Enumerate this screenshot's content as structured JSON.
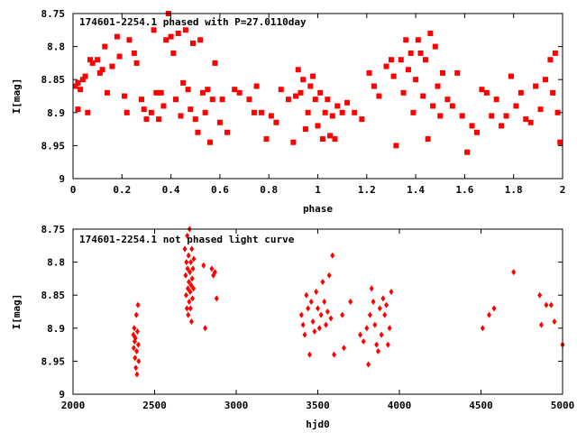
{
  "colors": {
    "marker": "#ff0000",
    "axis": "#000000",
    "background": "#ffffff"
  },
  "chart_data": [
    {
      "type": "scatter",
      "title": "174601-2254.1 phased with P=27.0110day",
      "xlabel": "phase",
      "ylabel": "I[mag]",
      "xlim": [
        0,
        2
      ],
      "ylim": [
        8.75,
        9
      ],
      "y_inverted": true,
      "xticks": [
        "0",
        "0.2",
        "0.4",
        "0.6",
        "0.8",
        "1",
        "1.2",
        "1.4",
        "1.6",
        "1.8",
        "2"
      ],
      "xtick_values": [
        0,
        0.2,
        0.4,
        0.6,
        0.8,
        1.0,
        1.2,
        1.4,
        1.6,
        1.8,
        2.0
      ],
      "yticks": [
        "8.75",
        "8.8",
        "8.85",
        "8.9",
        "8.95",
        "9"
      ],
      "ytick_values": [
        8.75,
        8.8,
        8.85,
        8.9,
        8.95,
        9.0
      ],
      "marker": "filled-square",
      "points": [
        [
          0.01,
          8.86
        ],
        [
          0.02,
          8.855
        ],
        [
          0.03,
          8.865
        ],
        [
          0.04,
          8.85
        ],
        [
          0.02,
          8.895
        ],
        [
          0.05,
          8.845
        ],
        [
          0.06,
          8.9
        ],
        [
          0.07,
          8.82
        ],
        [
          0.08,
          8.825
        ],
        [
          0.1,
          8.82
        ],
        [
          0.11,
          8.84
        ],
        [
          0.12,
          8.835
        ],
        [
          0.13,
          8.8
        ],
        [
          0.14,
          8.87
        ],
        [
          0.16,
          8.83
        ],
        [
          0.18,
          8.785
        ],
        [
          0.19,
          8.815
        ],
        [
          0.21,
          8.875
        ],
        [
          0.22,
          8.9
        ],
        [
          0.23,
          8.79
        ],
        [
          0.25,
          8.81
        ],
        [
          0.26,
          8.825
        ],
        [
          0.28,
          8.88
        ],
        [
          0.29,
          8.895
        ],
        [
          0.3,
          8.91
        ],
        [
          0.32,
          8.9
        ],
        [
          0.33,
          8.775
        ],
        [
          0.34,
          8.87
        ],
        [
          0.35,
          8.91
        ],
        [
          0.36,
          8.87
        ],
        [
          0.37,
          8.89
        ],
        [
          0.38,
          8.79
        ],
        [
          0.39,
          8.75
        ],
        [
          0.4,
          8.785
        ],
        [
          0.41,
          8.81
        ],
        [
          0.42,
          8.88
        ],
        [
          0.43,
          8.78
        ],
        [
          0.44,
          8.905
        ],
        [
          0.45,
          8.855
        ],
        [
          0.46,
          8.775
        ],
        [
          0.47,
          8.865
        ],
        [
          0.48,
          8.895
        ],
        [
          0.49,
          8.795
        ],
        [
          0.5,
          8.91
        ],
        [
          0.51,
          8.93
        ],
        [
          0.52,
          8.79
        ],
        [
          0.53,
          8.87
        ],
        [
          0.54,
          8.9
        ],
        [
          0.55,
          8.865
        ],
        [
          0.56,
          8.945
        ],
        [
          0.57,
          8.88
        ],
        [
          0.58,
          8.825
        ],
        [
          0.6,
          8.915
        ],
        [
          0.61,
          8.88
        ],
        [
          0.63,
          8.93
        ],
        [
          0.66,
          8.865
        ],
        [
          0.68,
          8.87
        ],
        [
          0.72,
          8.88
        ],
        [
          0.74,
          8.9
        ],
        [
          0.75,
          8.86
        ],
        [
          0.77,
          8.9
        ],
        [
          0.79,
          8.94
        ],
        [
          0.81,
          8.905
        ],
        [
          0.83,
          8.915
        ],
        [
          0.85,
          8.865
        ],
        [
          0.88,
          8.88
        ],
        [
          0.9,
          8.945
        ],
        [
          0.91,
          8.875
        ],
        [
          0.92,
          8.835
        ],
        [
          0.93,
          8.87
        ],
        [
          0.94,
          8.85
        ],
        [
          0.95,
          8.925
        ],
        [
          0.96,
          8.9
        ],
        [
          0.97,
          8.86
        ],
        [
          0.98,
          8.845
        ],
        [
          0.99,
          8.88
        ],
        [
          1.0,
          8.92
        ],
        [
          1.01,
          8.87
        ],
        [
          1.02,
          8.94
        ],
        [
          1.03,
          8.9
        ],
        [
          1.04,
          8.88
        ],
        [
          1.05,
          8.935
        ],
        [
          1.06,
          8.905
        ],
        [
          1.07,
          8.94
        ],
        [
          1.08,
          8.89
        ],
        [
          1.1,
          8.9
        ],
        [
          1.12,
          8.885
        ],
        [
          1.15,
          8.9
        ],
        [
          1.18,
          8.91
        ],
        [
          1.21,
          8.84
        ],
        [
          1.23,
          8.86
        ],
        [
          1.25,
          8.875
        ],
        [
          1.28,
          8.83
        ],
        [
          1.3,
          8.82
        ],
        [
          1.31,
          8.845
        ],
        [
          1.32,
          8.95
        ],
        [
          1.34,
          8.82
        ],
        [
          1.35,
          8.87
        ],
        [
          1.36,
          8.79
        ],
        [
          1.37,
          8.835
        ],
        [
          1.38,
          8.81
        ],
        [
          1.39,
          8.9
        ],
        [
          1.4,
          8.85
        ],
        [
          1.41,
          8.79
        ],
        [
          1.42,
          8.81
        ],
        [
          1.43,
          8.875
        ],
        [
          1.44,
          8.82
        ],
        [
          1.45,
          8.94
        ],
        [
          1.46,
          8.78
        ],
        [
          1.47,
          8.89
        ],
        [
          1.48,
          8.8
        ],
        [
          1.49,
          8.86
        ],
        [
          1.5,
          8.905
        ],
        [
          1.51,
          8.84
        ],
        [
          1.53,
          8.88
        ],
        [
          1.55,
          8.89
        ],
        [
          1.57,
          8.84
        ],
        [
          1.59,
          8.905
        ],
        [
          1.61,
          8.96
        ],
        [
          1.63,
          8.92
        ],
        [
          1.65,
          8.93
        ],
        [
          1.67,
          8.865
        ],
        [
          1.69,
          8.87
        ],
        [
          1.71,
          8.905
        ],
        [
          1.73,
          8.88
        ],
        [
          1.75,
          8.92
        ],
        [
          1.77,
          8.905
        ],
        [
          1.79,
          8.845
        ],
        [
          1.81,
          8.89
        ],
        [
          1.83,
          8.87
        ],
        [
          1.85,
          8.91
        ],
        [
          1.87,
          8.915
        ],
        [
          1.89,
          8.86
        ],
        [
          1.91,
          8.895
        ],
        [
          1.93,
          8.85
        ],
        [
          1.95,
          8.82
        ],
        [
          1.96,
          8.87
        ],
        [
          1.97,
          8.81
        ],
        [
          1.98,
          8.9
        ],
        [
          1.99,
          8.945
        ]
      ]
    },
    {
      "type": "scatter",
      "title": "174601-2254.1 not phased light curve",
      "xlabel": "hjd0",
      "ylabel": "I[mag]",
      "xlim": [
        2000,
        5000
      ],
      "ylim": [
        8.75,
        9
      ],
      "y_inverted": true,
      "xticks": [
        "2000",
        "2500",
        "3000",
        "3500",
        "4000",
        "4500",
        "5000"
      ],
      "xtick_values": [
        2000,
        2500,
        3000,
        3500,
        4000,
        4500,
        5000
      ],
      "yticks": [
        "8.75",
        "8.8",
        "8.85",
        "8.9",
        "8.95",
        "9"
      ],
      "ytick_values": [
        8.75,
        8.8,
        8.85,
        8.9,
        8.95,
        9.0
      ],
      "marker": "filled-diamond",
      "points": [
        [
          2370,
          8.91
        ],
        [
          2372,
          8.93
        ],
        [
          2375,
          8.9
        ],
        [
          2378,
          8.92
        ],
        [
          2380,
          8.945
        ],
        [
          2382,
          8.915
        ],
        [
          2385,
          8.96
        ],
        [
          2388,
          8.88
        ],
        [
          2390,
          8.935
        ],
        [
          2392,
          8.97
        ],
        [
          2395,
          8.905
        ],
        [
          2398,
          8.865
        ],
        [
          2400,
          8.925
        ],
        [
          2402,
          8.95
        ],
        [
          2685,
          8.78
        ],
        [
          2690,
          8.82
        ],
        [
          2693,
          8.85
        ],
        [
          2695,
          8.8
        ],
        [
          2698,
          8.87
        ],
        [
          2700,
          8.76
        ],
        [
          2702,
          8.81
        ],
        [
          2704,
          8.84
        ],
        [
          2706,
          8.88
        ],
        [
          2708,
          8.79
        ],
        [
          2710,
          8.83
        ],
        [
          2712,
          8.86
        ],
        [
          2714,
          8.75
        ],
        [
          2716,
          8.815
        ],
        [
          2718,
          8.845
        ],
        [
          2720,
          8.87
        ],
        [
          2722,
          8.8
        ],
        [
          2724,
          8.835
        ],
        [
          2726,
          8.89
        ],
        [
          2728,
          8.78
        ],
        [
          2730,
          8.825
        ],
        [
          2732,
          8.855
        ],
        [
          2735,
          8.81
        ],
        [
          2738,
          8.84
        ],
        [
          2740,
          8.795
        ],
        [
          2800,
          8.805
        ],
        [
          2810,
          8.9
        ],
        [
          2850,
          8.81
        ],
        [
          2860,
          8.82
        ],
        [
          2870,
          8.815
        ],
        [
          2880,
          8.855
        ],
        [
          3400,
          8.88
        ],
        [
          3410,
          8.895
        ],
        [
          3420,
          8.91
        ],
        [
          3430,
          8.85
        ],
        [
          3440,
          8.87
        ],
        [
          3450,
          8.94
        ],
        [
          3460,
          8.86
        ],
        [
          3470,
          8.89
        ],
        [
          3480,
          8.905
        ],
        [
          3490,
          8.845
        ],
        [
          3500,
          8.87
        ],
        [
          3510,
          8.9
        ],
        [
          3520,
          8.88
        ],
        [
          3530,
          8.83
        ],
        [
          3540,
          8.86
        ],
        [
          3550,
          8.895
        ],
        [
          3560,
          8.875
        ],
        [
          3570,
          8.82
        ],
        [
          3580,
          8.885
        ],
        [
          3590,
          8.79
        ],
        [
          3600,
          8.94
        ],
        [
          3650,
          8.88
        ],
        [
          3660,
          8.93
        ],
        [
          3700,
          8.86
        ],
        [
          3760,
          8.91
        ],
        [
          3780,
          8.92
        ],
        [
          3800,
          8.9
        ],
        [
          3810,
          8.955
        ],
        [
          3820,
          8.88
        ],
        [
          3830,
          8.84
        ],
        [
          3840,
          8.86
        ],
        [
          3850,
          8.895
        ],
        [
          3860,
          8.925
        ],
        [
          3870,
          8.935
        ],
        [
          3880,
          8.87
        ],
        [
          3890,
          8.91
        ],
        [
          3900,
          8.855
        ],
        [
          3910,
          8.88
        ],
        [
          3920,
          8.865
        ],
        [
          3930,
          8.925
        ],
        [
          3940,
          8.9
        ],
        [
          3950,
          8.845
        ],
        [
          4510,
          8.9
        ],
        [
          4550,
          8.88
        ],
        [
          4580,
          8.87
        ],
        [
          4700,
          8.815
        ],
        [
          4860,
          8.85
        ],
        [
          4870,
          8.895
        ],
        [
          4900,
          8.865
        ],
        [
          4930,
          8.865
        ],
        [
          4950,
          8.89
        ],
        [
          5000,
          8.925
        ]
      ]
    }
  ]
}
